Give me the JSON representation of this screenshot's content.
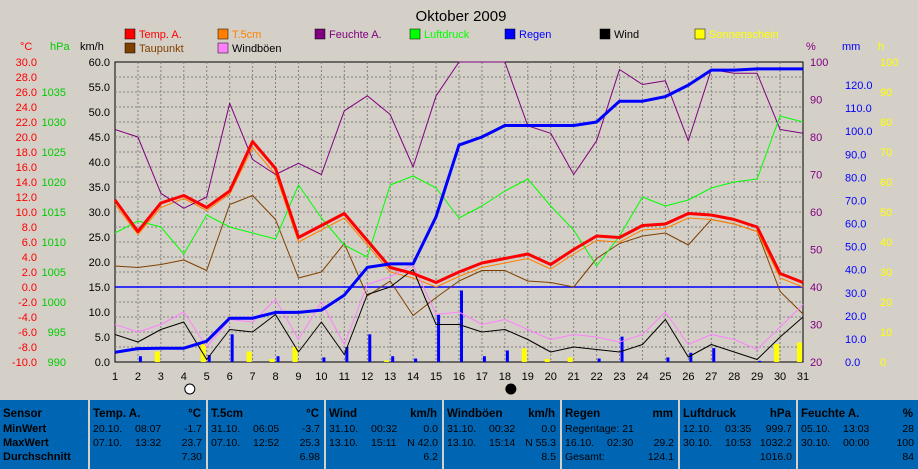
{
  "chart_data": {
    "type": "line",
    "title": "Oktober 2009",
    "x": [
      1,
      2,
      3,
      4,
      5,
      6,
      7,
      8,
      9,
      10,
      11,
      12,
      13,
      14,
      15,
      16,
      17,
      18,
      19,
      20,
      21,
      22,
      23,
      24,
      25,
      26,
      27,
      28,
      29,
      30,
      31
    ],
    "x_ticks": [
      "1",
      "2",
      "3",
      "4",
      "5",
      "6",
      "7",
      "8",
      "9",
      "10",
      "11",
      "12",
      "13",
      "14",
      "15",
      "16",
      "17",
      "18",
      "19",
      "20",
      "21",
      "22",
      "23",
      "24",
      "25",
      "26",
      "27",
      "28",
      "29",
      "30",
      "31"
    ],
    "axes": {
      "temp": {
        "label": "°C",
        "color": "#ff0000",
        "min": -10,
        "max": 30,
        "ticks": [
          "30.0",
          "28.0",
          "26.0",
          "24.0",
          "22.0",
          "20.0",
          "18.0",
          "16.0",
          "14.0",
          "12.0",
          "10.0",
          "8.0",
          "6.0",
          "4.0",
          "2.0",
          "0.0",
          "-2.0",
          "-4.0",
          "-6.0",
          "-8.0",
          "-10.0"
        ]
      },
      "pressure": {
        "label": "hPa",
        "color": "#00cc00",
        "min": 990,
        "max": 1040,
        "ticks": [
          "1035",
          "1030",
          "1025",
          "1020",
          "1015",
          "1010",
          "1005",
          "1000",
          "995",
          "990"
        ]
      },
      "wind": {
        "label": "km/h",
        "color": "#000000",
        "min": 0,
        "max": 60,
        "ticks": [
          "60.0",
          "55.0",
          "50.0",
          "45.0",
          "40.0",
          "35.0",
          "30.0",
          "25.0",
          "20.0",
          "15.0",
          "10.0",
          "5.0",
          "0.0"
        ]
      },
      "humidity": {
        "label": "%",
        "color": "#800080",
        "min": 20,
        "max": 100,
        "ticks": [
          "100",
          "90",
          "80",
          "70",
          "60",
          "50",
          "40",
          "30",
          "20"
        ]
      },
      "rain": {
        "label": "mm",
        "color": "#0000ff",
        "min": 0,
        "max": 130,
        "ticks": [
          "120.0",
          "110.0",
          "100.0",
          "90.0",
          "80.0",
          "70.0",
          "60.0",
          "50.0",
          "40.0",
          "30.0",
          "20.0",
          "10.0",
          "0.0"
        ]
      },
      "sun": {
        "label": "h",
        "color": "#ffff00",
        "min": 0,
        "max": 100,
        "ticks": [
          "100",
          "90",
          "80",
          "70",
          "60",
          "50",
          "40",
          "30",
          "20",
          "10",
          "0"
        ]
      }
    },
    "legend": [
      {
        "name": "Temp. A.",
        "color": "#ff0000"
      },
      {
        "name": "T.5cm",
        "color": "#ff8000"
      },
      {
        "name": "Feuchte A.",
        "color": "#800080"
      },
      {
        "name": "Luftdruck",
        "color": "#00ff00"
      },
      {
        "name": "Regen",
        "color": "#0000ff"
      },
      {
        "name": "Wind",
        "color": "#000000"
      },
      {
        "name": "Sonnenschein",
        "color": "#ffff00"
      },
      {
        "name": "Taupunkt",
        "color": "#804000"
      },
      {
        "name": "Windböen",
        "color": "#ff80ff"
      }
    ],
    "series": [
      {
        "name": "Temp. A.",
        "axis": "temp",
        "color": "#ff0000",
        "width": 3,
        "values": [
          11.6,
          7.4,
          11.2,
          12.2,
          10.6,
          12.8,
          19.4,
          15.8,
          6.6,
          8.2,
          9.8,
          6.2,
          2.6,
          1.8,
          0.6,
          2.0,
          3.2,
          3.8,
          4.4,
          3.0,
          5.0,
          6.8,
          6.6,
          8.2,
          8.4,
          9.8,
          9.6,
          9.0,
          8.0,
          1.8,
          0.6
        ]
      },
      {
        "name": "Taupunkt",
        "axis": "temp",
        "color": "#804000",
        "width": 1,
        "values": [
          2.8,
          2.6,
          3.0,
          3.6,
          2.2,
          11.0,
          12.2,
          9.0,
          1.2,
          2.0,
          5.8,
          -1.2,
          0.8,
          -3.8,
          -1.4,
          0.8,
          2.2,
          2.2,
          0.8,
          0.6,
          0.0,
          3.8,
          5.8,
          6.8,
          7.2,
          5.6,
          9.0,
          8.4,
          7.4,
          -0.6,
          -3.6
        ]
      },
      {
        "name": "T.5cm",
        "axis": "temp",
        "color": "#ff8000",
        "width": 1,
        "values": [
          11.0,
          7.0,
          10.6,
          11.8,
          10.2,
          12.4,
          18.6,
          15.0,
          6.0,
          7.6,
          9.2,
          5.6,
          2.0,
          1.2,
          0.0,
          1.4,
          2.6,
          3.2,
          3.8,
          2.4,
          4.4,
          6.2,
          6.0,
          7.6,
          7.8,
          9.2,
          9.0,
          8.4,
          7.4,
          1.2,
          0.0
        ]
      },
      {
        "name": "Feuchte A.",
        "axis": "humidity",
        "color": "#800080",
        "width": 1,
        "values": [
          82,
          80,
          65,
          61,
          64,
          89,
          74,
          70,
          73,
          70,
          87,
          91,
          86,
          72,
          91,
          100,
          100,
          100,
          83,
          81,
          70,
          79,
          98,
          94,
          95,
          79,
          98,
          97,
          97,
          82,
          81
        ]
      },
      {
        "name": "Luftdruck",
        "axis": "pressure",
        "color": "#00ff00",
        "width": 1,
        "values": [
          1011.5,
          1013.5,
          1012.5,
          1008.0,
          1014.5,
          1012.5,
          1011.5,
          1010.5,
          1019.5,
          1014.0,
          1009.5,
          1007.5,
          1019.5,
          1021.0,
          1019.0,
          1014.0,
          1016.0,
          1018.5,
          1020.5,
          1016.0,
          1012.0,
          1006.0,
          1011.0,
          1017.5,
          1016.0,
          1017.0,
          1019.0,
          1020.0,
          1020.5,
          1031.0,
          1030.0
        ]
      },
      {
        "name": "Wind",
        "axis": "wind",
        "color": "#000000",
        "width": 1,
        "values": [
          5.5,
          4.0,
          6.5,
          8.0,
          0.5,
          6.5,
          6.0,
          9.5,
          2.0,
          8.0,
          1.5,
          13.5,
          15.0,
          18.5,
          7.5,
          7.5,
          6.0,
          6.5,
          4.5,
          2.0,
          3.0,
          2.5,
          2.0,
          3.5,
          8.5,
          1.0,
          3.5,
          2.0,
          0.5,
          5.0,
          9.0
        ]
      },
      {
        "name": "Windböen",
        "axis": "wind",
        "color": "#ff80ff",
        "width": 1,
        "values": [
          7.5,
          6.0,
          7.5,
          10.0,
          3.0,
          8.5,
          8.0,
          12.5,
          4.5,
          12.0,
          3.5,
          15.5,
          17.0,
          19.5,
          9.5,
          10.0,
          7.5,
          8.5,
          6.5,
          4.5,
          5.5,
          5.0,
          4.0,
          5.5,
          10.0,
          3.5,
          5.5,
          4.5,
          2.5,
          7.0,
          11.5
        ]
      },
      {
        "name": "Regen",
        "axis": "rain",
        "color": "#0000ff",
        "width": 3,
        "values": [
          4.2,
          5.8,
          6.0,
          6.0,
          9.0,
          19.0,
          19.0,
          21.5,
          21.5,
          22.5,
          29.0,
          41.0,
          42.5,
          42.5,
          63.0,
          94.0,
          97.5,
          102.5,
          102.5,
          102.5,
          102.5,
          104.0,
          113.0,
          113.0,
          115.0,
          120.0,
          126.5,
          126.5,
          127.0,
          127.0,
          127.0
        ]
      },
      {
        "name": "Regen_daily",
        "axis": "rain",
        "color": "#0000ff",
        "type": "bar",
        "values": [
          0,
          2.5,
          0,
          0,
          3,
          12,
          0,
          2.5,
          0,
          2,
          6.5,
          12,
          2.5,
          1.5,
          20.5,
          31,
          2.5,
          5,
          0,
          0,
          0,
          1.5,
          11,
          0,
          2,
          4,
          6,
          0,
          0.5,
          0,
          0
        ]
      },
      {
        "name": "Sonnenschein",
        "axis": "sun",
        "color": "#ffff00",
        "type": "bar",
        "values": [
          0,
          0,
          3.5,
          0,
          6.5,
          0,
          3.5,
          1,
          5,
          0,
          0,
          0,
          0.5,
          0,
          0,
          0,
          0,
          0,
          4.5,
          1,
          1.5,
          0,
          0,
          0,
          0,
          0,
          0,
          0,
          0,
          6,
          6.5
        ]
      }
    ],
    "moon_phases": [
      {
        "day": 4,
        "phase": "full"
      },
      {
        "day": 18,
        "phase": "new"
      }
    ],
    "grid": true,
    "reference_line": {
      "axis": "temp",
      "value": 0,
      "color": "#0000ff"
    }
  },
  "stats": [
    {
      "header": "Sensor",
      "unit": "",
      "rows": [
        [
          "MinWert",
          "",
          ""
        ],
        [
          "MaxWert",
          "",
          ""
        ],
        [
          "Durchschnitt",
          "",
          ""
        ]
      ]
    },
    {
      "header": "Temp. A.",
      "unit": "°C",
      "rows": [
        [
          "20.10.",
          "08:07",
          "-1.7"
        ],
        [
          "07.10.",
          "13:32",
          "23.7"
        ],
        [
          "",
          "",
          "7.30"
        ]
      ]
    },
    {
      "header": "T.5cm",
      "unit": "°C",
      "rows": [
        [
          "31.10.",
          "06:05",
          "-3.7"
        ],
        [
          "07.10.",
          "12:52",
          "25.3"
        ],
        [
          "",
          "",
          "6.98"
        ]
      ]
    },
    {
      "header": "Wind",
      "unit": "km/h",
      "rows": [
        [
          "31.10.",
          "00:32",
          "0.0"
        ],
        [
          "13.10.",
          "15:11",
          "N 42.0"
        ],
        [
          "",
          "",
          "6.2"
        ]
      ]
    },
    {
      "header": "Windböen",
      "unit": "km/h",
      "rows": [
        [
          "31.10.",
          "00:32",
          "0.0"
        ],
        [
          "13.10.",
          "15:14",
          "N 55.3"
        ],
        [
          "",
          "",
          "8.5"
        ]
      ]
    },
    {
      "header": "Regen",
      "unit": "mm",
      "rows": [
        [
          "Regentage: 21",
          "",
          ""
        ],
        [
          "16.10.",
          "02:30",
          "29.2"
        ],
        [
          "Gesamt:",
          "",
          "124.1"
        ]
      ]
    },
    {
      "header": "Luftdruck",
      "unit": "hPa",
      "rows": [
        [
          "12.10.",
          "03:35",
          "999.7"
        ],
        [
          "30.10.",
          "10:53",
          "1032.2"
        ],
        [
          "",
          "",
          "1016.0"
        ]
      ]
    },
    {
      "header": "Feuchte A.",
      "unit": "%",
      "rows": [
        [
          "05.10.",
          "13:03",
          "28"
        ],
        [
          "30.10.",
          "00:00",
          "100"
        ],
        [
          "",
          "",
          "84"
        ]
      ]
    }
  ]
}
